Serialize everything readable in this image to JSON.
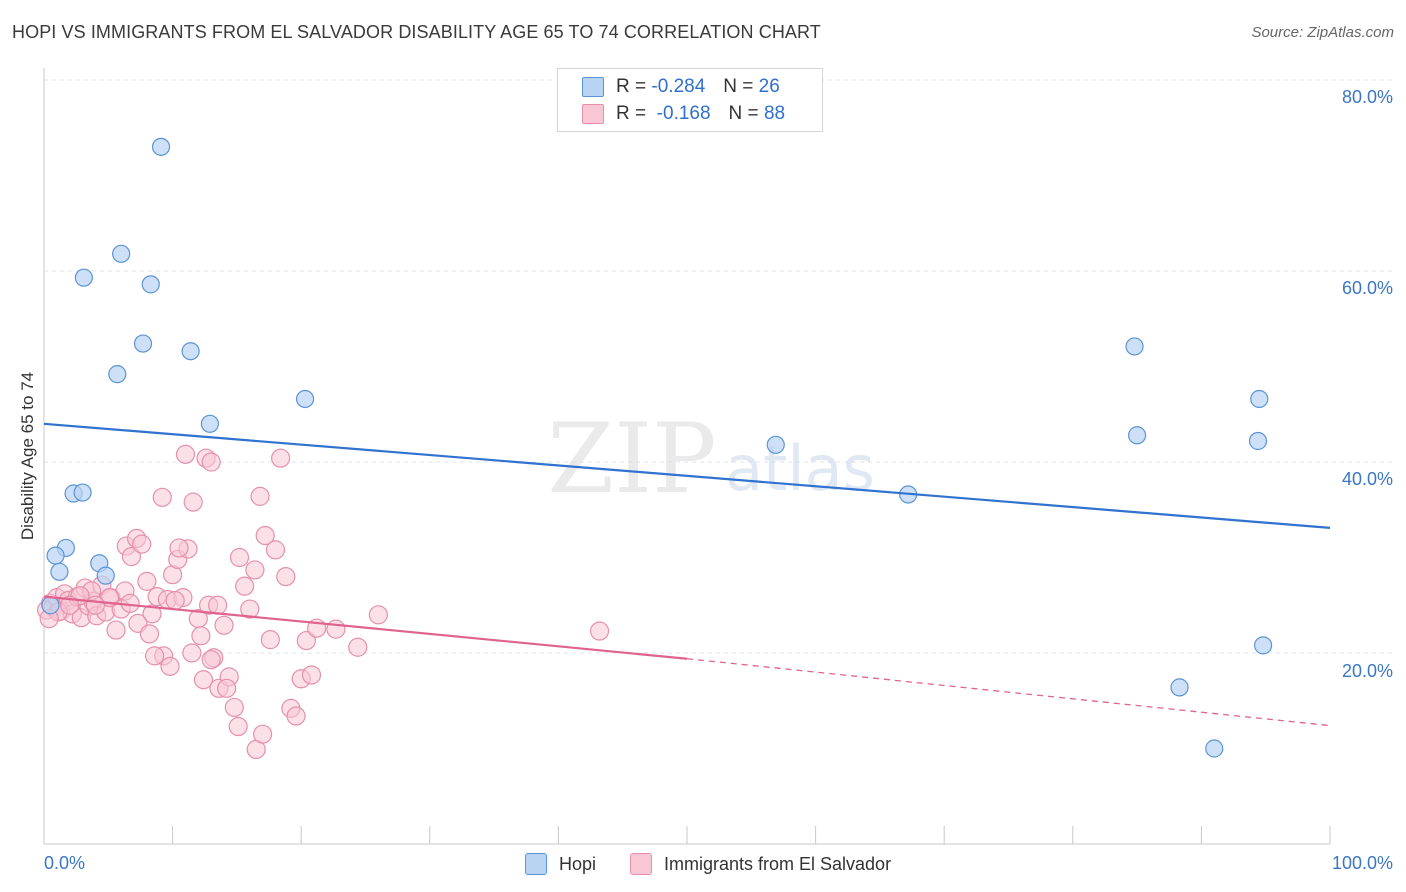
{
  "title": "HOPI VS IMMIGRANTS FROM EL SALVADOR DISABILITY AGE 65 TO 74 CORRELATION CHART",
  "source": "Source: ZipAtlas.com",
  "watermark": {
    "zip": "ZIP",
    "atlas": "atlas"
  },
  "legend": {
    "hopi": {
      "r_label": "R =",
      "r_value": "-0.284",
      "n_label": "N =",
      "n_value": "26"
    },
    "salvador": {
      "r_label": "R =",
      "r_value": "-0.168",
      "n_label": "N =",
      "n_value": "88"
    }
  },
  "bottom_legend": {
    "hopi": "Hopi",
    "salvador": "Immigrants from El Salvador"
  },
  "colors": {
    "hopi_fill": "#b9d3f3",
    "hopi_stroke": "#5b94d6",
    "hopi_line": "#2f72cf",
    "salvador_fill": "#f8c6d5",
    "salvador_stroke": "#e690ac",
    "salvador_line": "#e0628e",
    "grid": "#dde3ec",
    "axis_text": "#3a76c4"
  },
  "chart_data": {
    "type": "scatter",
    "title": "HOPI VS IMMIGRANTS FROM EL SALVADOR DISABILITY AGE 65 TO 74 CORRELATION CHART",
    "xlabel": "",
    "ylabel": "Disability Age 65 to 74",
    "xlim": [
      0,
      100
    ],
    "ylim": [
      0,
      82
    ],
    "x_tick_labels": [
      "0.0%",
      "100.0%"
    ],
    "y_ticks": [
      20,
      40,
      60,
      80
    ],
    "y_tick_labels": [
      "20.0%",
      "40.0%",
      "60.0%",
      "80.0%"
    ],
    "series": [
      {
        "name": "Hopi",
        "points": [
          [
            9.1,
            73.0
          ],
          [
            6.0,
            61.8
          ],
          [
            3.1,
            59.3
          ],
          [
            8.3,
            58.6
          ],
          [
            7.7,
            52.4
          ],
          [
            11.4,
            51.6
          ],
          [
            5.7,
            49.2
          ],
          [
            20.3,
            46.6
          ],
          [
            12.9,
            44.0
          ],
          [
            2.3,
            36.7
          ],
          [
            3.0,
            36.8
          ],
          [
            1.7,
            31.0
          ],
          [
            0.9,
            30.2
          ],
          [
            4.3,
            29.4
          ],
          [
            1.2,
            28.5
          ],
          [
            4.8,
            28.1
          ],
          [
            56.9,
            41.8
          ],
          [
            67.2,
            36.6
          ],
          [
            84.8,
            52.1
          ],
          [
            85.0,
            42.8
          ],
          [
            94.5,
            46.6
          ],
          [
            94.4,
            42.2
          ],
          [
            94.8,
            20.8
          ],
          [
            88.3,
            16.4
          ],
          [
            91.0,
            10.0
          ],
          [
            0.5,
            25.0
          ]
        ],
        "trend": {
          "x": [
            0,
            100
          ],
          "y": [
            44.0,
            33.1
          ]
        }
      },
      {
        "name": "Immigrants from El Salvador",
        "points": [
          [
            0.2,
            24.5
          ],
          [
            0.5,
            25.2
          ],
          [
            0.7,
            24.8
          ],
          [
            1.0,
            25.8
          ],
          [
            1.3,
            24.4
          ],
          [
            1.6,
            26.2
          ],
          [
            1.9,
            25.5
          ],
          [
            2.2,
            24.1
          ],
          [
            2.6,
            25.9
          ],
          [
            2.9,
            23.7
          ],
          [
            3.2,
            26.8
          ],
          [
            3.5,
            24.9
          ],
          [
            3.8,
            25.4
          ],
          [
            4.1,
            23.9
          ],
          [
            4.5,
            27.1
          ],
          [
            4.8,
            24.3
          ],
          [
            5.2,
            25.8
          ],
          [
            5.6,
            22.4
          ],
          [
            6.0,
            24.6
          ],
          [
            6.4,
            31.2
          ],
          [
            6.8,
            30.1
          ],
          [
            7.2,
            32.0
          ],
          [
            7.6,
            31.4
          ],
          [
            8.0,
            27.5
          ],
          [
            8.4,
            24.1
          ],
          [
            8.8,
            25.9
          ],
          [
            9.2,
            36.3
          ],
          [
            9.6,
            25.6
          ],
          [
            10.0,
            28.2
          ],
          [
            10.4,
            29.8
          ],
          [
            10.8,
            25.8
          ],
          [
            11.2,
            30.9
          ],
          [
            11.6,
            35.8
          ],
          [
            12.0,
            23.6
          ],
          [
            12.4,
            17.2
          ],
          [
            12.8,
            25.0
          ],
          [
            13.2,
            19.5
          ],
          [
            13.6,
            16.3
          ],
          [
            14.0,
            22.9
          ],
          [
            14.4,
            17.5
          ],
          [
            14.8,
            14.3
          ],
          [
            15.2,
            30.0
          ],
          [
            15.6,
            27.0
          ],
          [
            16.0,
            24.6
          ],
          [
            16.4,
            28.7
          ],
          [
            16.8,
            36.4
          ],
          [
            17.2,
            32.3
          ],
          [
            17.6,
            21.4
          ],
          [
            18.0,
            30.8
          ],
          [
            18.4,
            40.4
          ],
          [
            18.8,
            28.0
          ],
          [
            19.2,
            14.2
          ],
          [
            19.6,
            13.4
          ],
          [
            20.0,
            17.3
          ],
          [
            20.4,
            21.3
          ],
          [
            20.8,
            17.7
          ],
          [
            21.2,
            22.6
          ],
          [
            11.0,
            40.8
          ],
          [
            12.6,
            40.4
          ],
          [
            13.0,
            40.0
          ],
          [
            10.5,
            31.0
          ],
          [
            9.3,
            19.7
          ],
          [
            8.6,
            19.7
          ],
          [
            9.8,
            18.6
          ],
          [
            11.5,
            20.0
          ],
          [
            12.2,
            21.8
          ],
          [
            13.5,
            25.0
          ],
          [
            15.1,
            12.3
          ],
          [
            16.5,
            9.9
          ],
          [
            17.0,
            11.5
          ],
          [
            14.2,
            16.3
          ],
          [
            13.0,
            19.3
          ],
          [
            10.2,
            25.5
          ],
          [
            7.3,
            23.1
          ],
          [
            6.3,
            26.5
          ],
          [
            5.1,
            25.8
          ],
          [
            3.7,
            26.5
          ],
          [
            2.8,
            26.0
          ],
          [
            1.1,
            24.3
          ],
          [
            0.4,
            23.6
          ],
          [
            22.7,
            22.5
          ],
          [
            24.4,
            20.6
          ],
          [
            26.0,
            24.0
          ],
          [
            43.2,
            22.3
          ],
          [
            8.2,
            22.0
          ],
          [
            4.0,
            25.0
          ],
          [
            2.0,
            25.0
          ],
          [
            6.7,
            25.2
          ]
        ],
        "trend": {
          "x": [
            0,
            50
          ],
          "y": [
            25.9,
            19.4
          ]
        },
        "trend_dashed": {
          "x": [
            50,
            100
          ],
          "y": [
            19.4,
            12.4
          ]
        }
      }
    ]
  }
}
